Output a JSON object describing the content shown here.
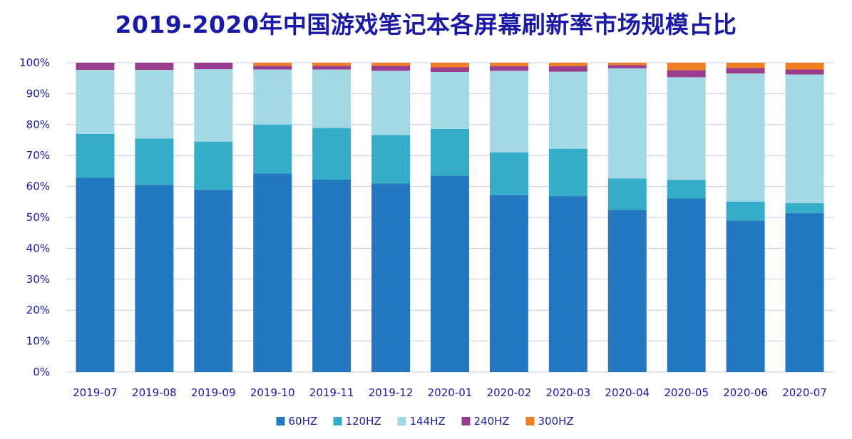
{
  "chart_data": {
    "type": "bar",
    "stacked": true,
    "title": "2019-2020年中国游戏笔记本各屏幕刷新率市场规模占比",
    "xlabel": "",
    "ylabel": "",
    "ylim": [
      0,
      100
    ],
    "yticks": [
      "0%",
      "10%",
      "20%",
      "30%",
      "40%",
      "50%",
      "60%",
      "70%",
      "80%",
      "90%",
      "100%"
    ],
    "categories": [
      "2019-07",
      "2019-08",
      "2019-09",
      "2019-10",
      "2019-11",
      "2019-12",
      "2020-01",
      "2020-02",
      "2020-03",
      "2020-04",
      "2020-05",
      "2020-06",
      "2020-07"
    ],
    "series": [
      {
        "name": "60HZ",
        "color": "#2378bf",
        "values": [
          62.8,
          60.5,
          58.9,
          64.2,
          62.2,
          61.0,
          63.5,
          57.2,
          56.8,
          52.4,
          56.1,
          49.0,
          51.4
        ]
      },
      {
        "name": "120HZ",
        "color": "#36adc8",
        "values": [
          14.2,
          15.0,
          15.6,
          15.8,
          16.7,
          15.6,
          15.1,
          13.8,
          15.4,
          10.2,
          6.0,
          6.1,
          3.2
        ]
      },
      {
        "name": "144HZ",
        "color": "#a2d9e5",
        "values": [
          20.7,
          22.2,
          23.4,
          17.8,
          18.9,
          20.8,
          18.4,
          26.4,
          24.9,
          35.6,
          33.2,
          41.4,
          41.6
        ]
      },
      {
        "name": "240HZ",
        "color": "#9b3d8e",
        "values": [
          2.3,
          2.3,
          2.1,
          1.2,
          1.2,
          1.6,
          1.5,
          1.5,
          1.8,
          1.0,
          2.3,
          1.8,
          1.6
        ]
      },
      {
        "name": "300HZ",
        "color": "#f07e22",
        "values": [
          0.0,
          0.0,
          0.0,
          1.0,
          1.0,
          1.0,
          1.5,
          1.1,
          1.1,
          0.8,
          2.4,
          1.7,
          2.2
        ]
      }
    ],
    "grid": true,
    "legend_position": "bottom",
    "axis_text_color": "#1a1aa6",
    "grid_color": "#c9c9ef"
  }
}
